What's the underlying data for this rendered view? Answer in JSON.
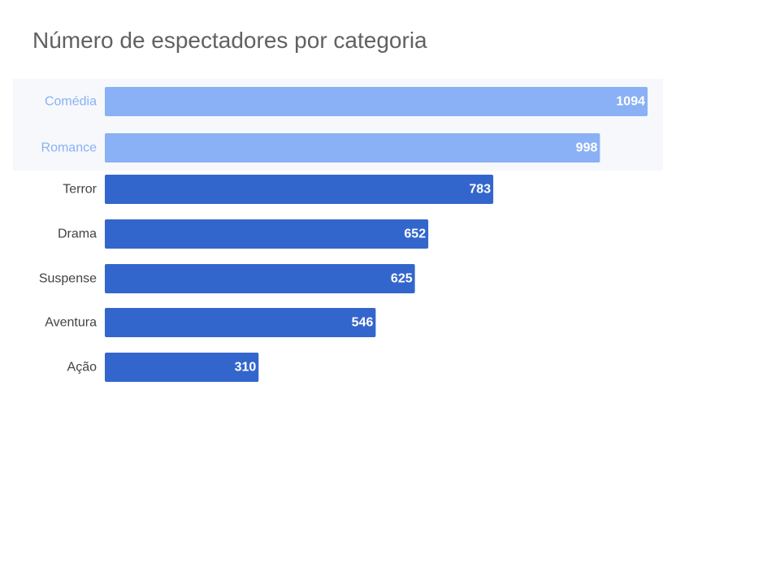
{
  "chart_data": {
    "type": "bar",
    "orientation": "horizontal",
    "title": "Número de espectadores por categoria",
    "categories": [
      "Comédia",
      "Romance",
      "Terror",
      "Drama",
      "Suspense",
      "Aventura",
      "Ação"
    ],
    "values": [
      1094,
      998,
      783,
      652,
      625,
      546,
      310
    ],
    "highlighted": [
      "Comédia",
      "Romance"
    ],
    "xlim": [
      0,
      1094
    ],
    "grid": false,
    "legend": "none",
    "data_labels": "inside-end"
  },
  "colors": {
    "bar": "#3366cc",
    "bar_highlight": "#8ab0f5",
    "label": "#424242",
    "label_highlight": "#8ab0f5",
    "title": "#616161",
    "highlight_background": "#f6f8fc",
    "value_text": "#ffffff"
  }
}
